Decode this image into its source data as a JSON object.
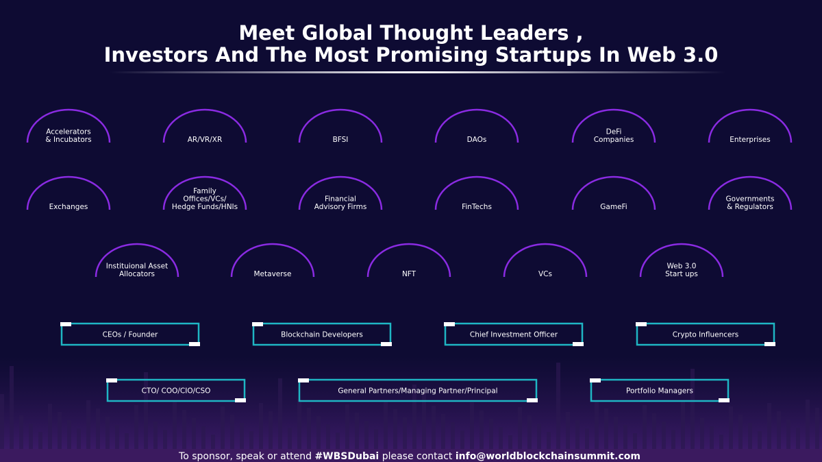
{
  "header": {
    "title": [
      "Meet Global Thought Leaders ,",
      "Investors And The Most Promising Startups In Web 3.0"
    ]
  },
  "categories": [
    [
      "Accelerators",
      "& Incubators"
    ],
    [
      "AR/VR/XR"
    ],
    [
      "BFSI"
    ],
    [
      "DAOs"
    ],
    [
      "DeFi",
      "Companies"
    ],
    [
      "Enterprises"
    ],
    [
      "Exchanges"
    ],
    [
      "Family",
      "Offices/VCs/",
      "Hedge Funds/HNIs"
    ],
    [
      "Financial",
      "Advisory Firms"
    ],
    [
      "FinTechs"
    ],
    [
      "GameFi"
    ],
    [
      "Governments",
      "& Regulators"
    ],
    [
      "Instituional Asset",
      "Allocators"
    ],
    [
      "Metaverse"
    ],
    [
      "NFT"
    ],
    [
      "VCs"
    ],
    [
      "Web 3.0",
      "Start ups"
    ]
  ],
  "roles": [
    "CEOs / Founder",
    "Blockchain Developers",
    "Chief Investment Officer",
    "Crypto Influencers",
    "CTO/ COO/CIO/CSO",
    "General Partners/Managing Partner/Principal",
    "Portfolio Managers"
  ],
  "footer": [
    "To sponsor, speak or attend ",
    "#WBSDubai",
    " please contact ",
    "info@worldblockchainsummit.com"
  ]
}
